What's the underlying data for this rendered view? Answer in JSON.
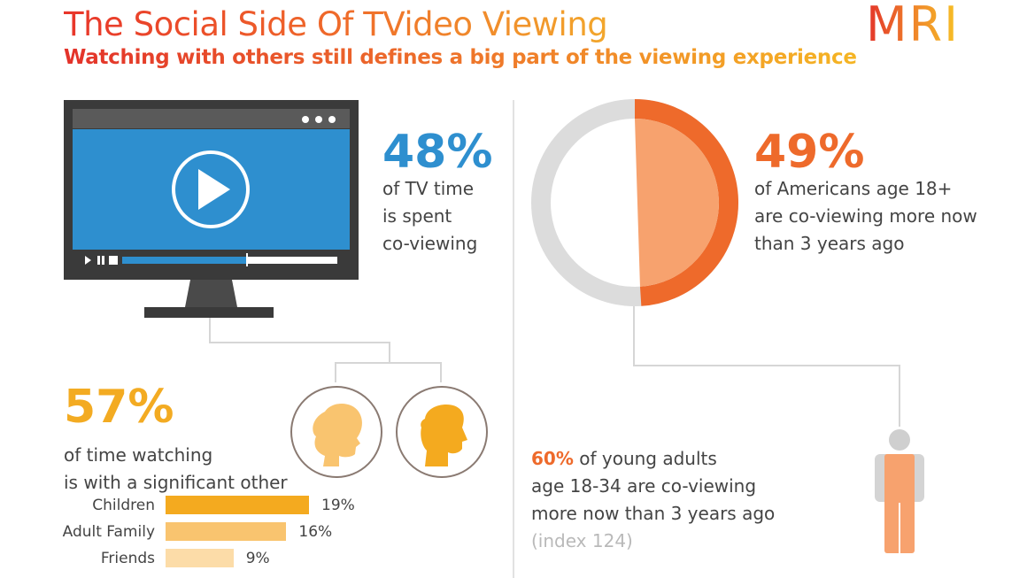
{
  "header": {
    "title": "The Social Side Of TVideo Viewing",
    "subtitle": "Watching with others still defines a big part of the viewing experience",
    "logo": "MRI"
  },
  "stats": {
    "tv": {
      "value": "48%",
      "lines": [
        "of TV time",
        "is spent",
        "co-viewing"
      ]
    },
    "americans": {
      "value": "49%",
      "lines": [
        "of Americans age 18+",
        "are co-viewing more now",
        "than 3 years ago"
      ],
      "share": 0.49
    },
    "significant_other": {
      "value": "57%",
      "lines": [
        "of time watching",
        "is with a significant other"
      ]
    },
    "young_adults": {
      "highlight": "60%",
      "line1_rest": " of young adults",
      "line2": "age 18-34 are co-viewing",
      "line3": "more now than 3 years ago",
      "index": "(index 124)"
    }
  },
  "breakdown": [
    {
      "label": "Children",
      "value": 19,
      "display": "19%",
      "color": "#f4aa1f"
    },
    {
      "label": "Adult Family",
      "value": 16,
      "display": "16%",
      "color": "#f9c46f"
    },
    {
      "label": "Friends",
      "value": 9,
      "display": "9%",
      "color": "#fcdca8"
    }
  ],
  "colors": {
    "blue": "#2e8fcf",
    "orange": "#ee6a2b",
    "orange_light": "#f7a26e",
    "yellow": "#f3ab22",
    "gray_ring": "#dcdcdc",
    "tv_frame": "#3a3a3a"
  },
  "icons": {
    "tv": "tv-screen-icon",
    "play": "play-icon",
    "woman": "woman-silhouette-icon",
    "man": "man-silhouette-icon",
    "person": "person-icon"
  }
}
